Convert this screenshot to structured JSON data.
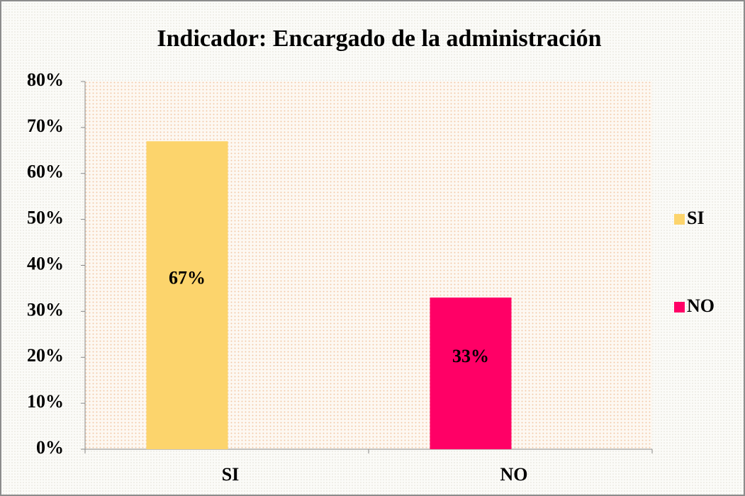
{
  "chart_data": {
    "type": "bar",
    "title": "Indicador: Encargado de la administración",
    "categories": [
      "SI",
      "NO"
    ],
    "values": [
      67,
      33
    ],
    "value_labels": [
      "67%",
      "33%"
    ],
    "colors": [
      "#fcd46c",
      "#ff0066"
    ],
    "ylim": [
      0,
      80
    ],
    "yticks": [
      {
        "value": 0,
        "label": "0%"
      },
      {
        "value": 10,
        "label": "10%"
      },
      {
        "value": 20,
        "label": "20%"
      },
      {
        "value": 30,
        "label": "30%"
      },
      {
        "value": 40,
        "label": "40%"
      },
      {
        "value": 50,
        "label": "50%"
      },
      {
        "value": 60,
        "label": "60%"
      },
      {
        "value": 70,
        "label": "70%"
      },
      {
        "value": 80,
        "label": "80%"
      }
    ],
    "legend": "right"
  }
}
